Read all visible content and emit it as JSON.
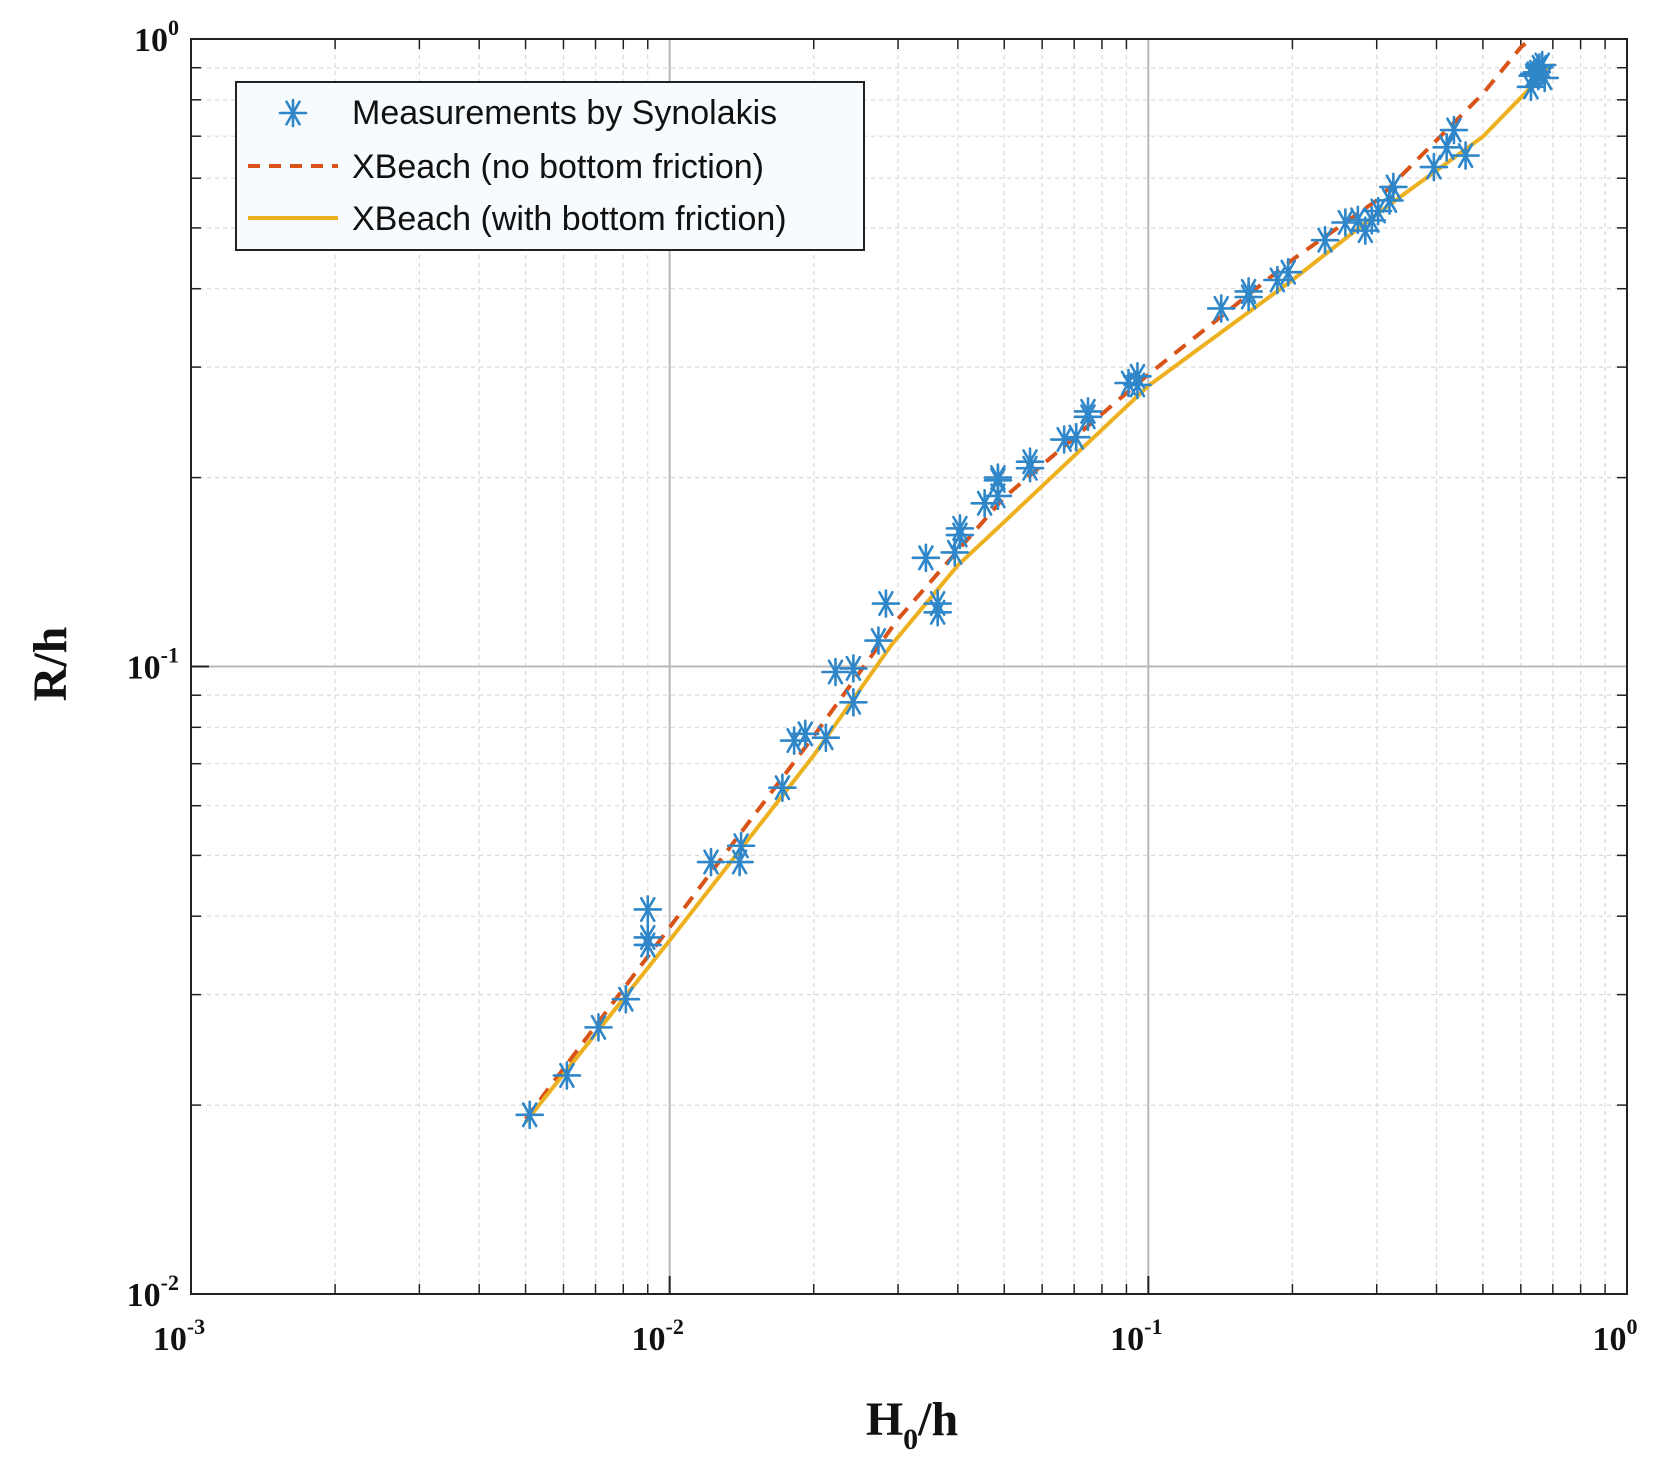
{
  "chart_data": {
    "type": "scatter",
    "xscale": "log",
    "yscale": "log",
    "xlim": [
      0.001,
      1
    ],
    "ylim": [
      0.01,
      1
    ],
    "xlabel": "H0/h",
    "xlabel_main": "H",
    "xlabel_sub": "0",
    "xlabel_rest": "/h",
    "ylabel": "R/h",
    "grid": true,
    "legend_position": "top-left",
    "x_ticks": [
      {
        "value": 0.001,
        "base": "10",
        "exp": "-3"
      },
      {
        "value": 0.01,
        "base": "10",
        "exp": "-2"
      },
      {
        "value": 0.1,
        "base": "10",
        "exp": "-1"
      },
      {
        "value": 1,
        "base": "10",
        "exp": "0"
      }
    ],
    "y_ticks": [
      {
        "value": 0.01,
        "base": "10",
        "exp": "-2"
      },
      {
        "value": 0.1,
        "base": "10",
        "exp": "-1"
      },
      {
        "value": 1,
        "base": "10",
        "exp": "0"
      }
    ],
    "series": [
      {
        "name": "Measurements by Synolakis",
        "kind": "scatter",
        "color": "#2f86c8",
        "points": [
          [
            0.0051,
            0.0193
          ],
          [
            0.0061,
            0.0223
          ],
          [
            0.0071,
            0.0266
          ],
          [
            0.0081,
            0.0295
          ],
          [
            0.009,
            0.036
          ],
          [
            0.009,
            0.037
          ],
          [
            0.009,
            0.041
          ],
          [
            0.0122,
            0.0488
          ],
          [
            0.014,
            0.0488
          ],
          [
            0.0141,
            0.0518
          ],
          [
            0.0172,
            0.0641
          ],
          [
            0.0182,
            0.0762
          ],
          [
            0.0192,
            0.0781
          ],
          [
            0.0212,
            0.077
          ],
          [
            0.0222,
            0.098
          ],
          [
            0.0242,
            0.0877
          ],
          [
            0.0242,
            0.0993
          ],
          [
            0.0273,
            0.11
          ],
          [
            0.0283,
            0.126
          ],
          [
            0.0343,
            0.149
          ],
          [
            0.0363,
            0.126
          ],
          [
            0.0363,
            0.122
          ],
          [
            0.0394,
            0.152
          ],
          [
            0.0404,
            0.162
          ],
          [
            0.0404,
            0.166
          ],
          [
            0.0455,
            0.182
          ],
          [
            0.0485,
            0.187
          ],
          [
            0.0485,
            0.198
          ],
          [
            0.0485,
            0.2
          ],
          [
            0.0566,
            0.212
          ],
          [
            0.0566,
            0.207
          ],
          [
            0.0667,
            0.23
          ],
          [
            0.0707,
            0.232
          ],
          [
            0.0748,
            0.25
          ],
          [
            0.0748,
            0.255
          ],
          [
            0.0909,
            0.283
          ],
          [
            0.0949,
            0.29
          ],
          [
            0.0949,
            0.281
          ],
          [
            0.142,
            0.372
          ],
          [
            0.162,
            0.388
          ],
          [
            0.162,
            0.396
          ],
          [
            0.186,
            0.413
          ],
          [
            0.196,
            0.425
          ],
          [
            0.234,
            0.478
          ],
          [
            0.258,
            0.51
          ],
          [
            0.274,
            0.515
          ],
          [
            0.284,
            0.495
          ],
          [
            0.293,
            0.514
          ],
          [
            0.302,
            0.532
          ],
          [
            0.319,
            0.553
          ],
          [
            0.325,
            0.581
          ],
          [
            0.395,
            0.625
          ],
          [
            0.42,
            0.672
          ],
          [
            0.435,
            0.716
          ],
          [
            0.46,
            0.652
          ],
          [
            0.63,
            0.839
          ],
          [
            0.635,
            0.874
          ],
          [
            0.64,
            0.88
          ],
          [
            0.648,
            0.885
          ],
          [
            0.656,
            0.901
          ],
          [
            0.665,
            0.909
          ],
          [
            0.673,
            0.867
          ]
        ]
      },
      {
        "name": "XBeach (no bottom friction)",
        "kind": "dashed-line",
        "color": "#d95319",
        "points": [
          [
            0.005,
            0.019
          ],
          [
            0.01,
            0.0384
          ],
          [
            0.02,
            0.0775
          ],
          [
            0.03,
            0.119
          ],
          [
            0.05,
            0.186
          ],
          [
            0.1,
            0.292
          ],
          [
            0.2,
            0.445
          ],
          [
            0.3,
            0.553
          ],
          [
            0.5,
            0.818
          ],
          [
            0.6,
            0.97
          ],
          [
            0.63,
            1.0
          ]
        ]
      },
      {
        "name": "XBeach (with bottom friction)",
        "kind": "solid-line",
        "color": "#edb120",
        "points": [
          [
            0.005,
            0.0188
          ],
          [
            0.01,
            0.0366
          ],
          [
            0.02,
            0.0722
          ],
          [
            0.029,
            0.108
          ],
          [
            0.04,
            0.145
          ],
          [
            0.05,
            0.17
          ],
          [
            0.1,
            0.28
          ],
          [
            0.2,
            0.413
          ],
          [
            0.3,
            0.526
          ],
          [
            0.5,
            0.699
          ],
          [
            0.7,
            0.91
          ]
        ]
      }
    ]
  },
  "legend": {
    "items": [
      {
        "label": "Measurements by Synolakis",
        "color": "#2f86c8"
      },
      {
        "label": "XBeach (no bottom friction)",
        "color": "#d95319"
      },
      {
        "label": "XBeach (with bottom friction)",
        "color": "#edb120"
      }
    ]
  }
}
